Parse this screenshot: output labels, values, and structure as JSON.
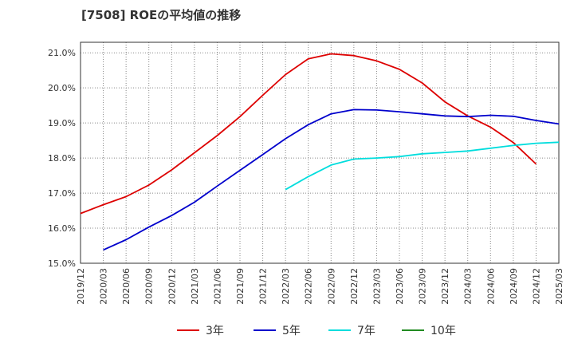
{
  "chart_data": {
    "type": "line",
    "title": "[7508]  ROEの平均値の推移",
    "xlabel": "",
    "ylabel": "",
    "ylim": [
      15.0,
      21.3
    ],
    "y_ticks": [
      "15.0%",
      "16.0%",
      "17.0%",
      "18.0%",
      "19.0%",
      "20.0%",
      "21.0%"
    ],
    "y_tick_values": [
      15.0,
      16.0,
      17.0,
      18.0,
      19.0,
      20.0,
      21.0
    ],
    "x_ticks": [
      "2019/12",
      "2020/03",
      "2020/06",
      "2020/09",
      "2020/12",
      "2021/03",
      "2021/06",
      "2021/09",
      "2021/12",
      "2022/03",
      "2022/06",
      "2022/09",
      "2022/12",
      "2023/03",
      "2023/06",
      "2023/09",
      "2023/12",
      "2024/03",
      "2024/06",
      "2024/09",
      "2024/12",
      "2025/03"
    ],
    "grid": true,
    "legend_position": "bottom",
    "series": [
      {
        "name": "3年",
        "color": "#dd0000",
        "start_index": 0,
        "values": [
          16.42,
          16.67,
          16.9,
          17.23,
          17.66,
          18.15,
          18.64,
          19.18,
          19.79,
          20.38,
          20.83,
          20.97,
          20.92,
          20.77,
          20.53,
          20.14,
          19.6,
          19.2,
          18.88,
          18.44,
          17.83
        ]
      },
      {
        "name": "5年",
        "color": "#0000cc",
        "start_index": 1,
        "values": [
          15.38,
          15.67,
          16.03,
          16.36,
          16.74,
          17.2,
          17.65,
          18.1,
          18.55,
          18.95,
          19.26,
          19.38,
          19.37,
          19.32,
          19.26,
          19.2,
          19.18,
          19.22,
          19.19,
          19.07,
          18.97
        ]
      },
      {
        "name": "7年",
        "color": "#00dddd",
        "start_index": 9,
        "values": [
          17.1,
          17.47,
          17.8,
          17.97,
          18.0,
          18.04,
          18.12,
          18.16,
          18.2,
          18.28,
          18.36,
          18.42,
          18.45
        ]
      },
      {
        "name": "10年",
        "color": "#228b22",
        "start_index": 0,
        "values": []
      }
    ]
  }
}
